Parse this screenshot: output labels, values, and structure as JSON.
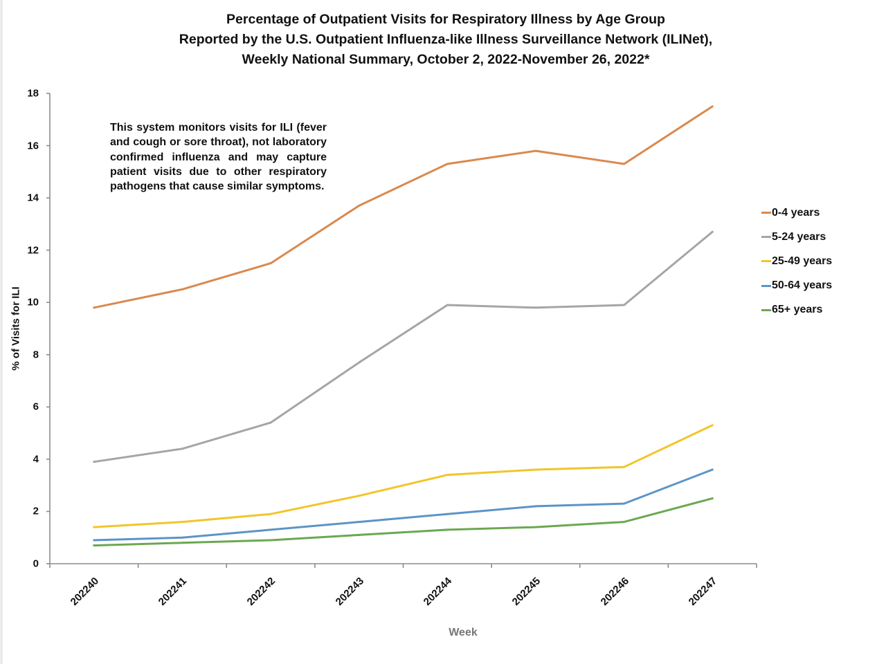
{
  "chart_data": {
    "type": "line",
    "title": [
      "Percentage of Outpatient Visits for Respiratory Illness by Age Group",
      "Reported by the U.S. Outpatient Influenza-like Illness Surveillance Network (ILINet),",
      "Weekly National Summary, October 2, 2022-November 26, 2022*"
    ],
    "xlabel": "Week",
    "ylabel": "% of Visits for ILI",
    "categories": [
      "202240",
      "202241",
      "202242",
      "202243",
      "202244",
      "202245",
      "202246",
      "202247"
    ],
    "ylim": [
      0,
      18
    ],
    "yticks": [
      "0",
      "2",
      "4",
      "6",
      "8",
      "10",
      "12",
      "14",
      "16",
      "18"
    ],
    "grid": false,
    "legend_position": "right",
    "annotation": "This system monitors visits for ILI (fever and cough or sore throat), not laboratory confirmed influenza and may capture patient visits due to other respiratory pathogens that cause similar symptoms.",
    "series": [
      {
        "name": "0-4 years",
        "color": "#d9894e",
        "values": [
          9.8,
          10.5,
          11.5,
          13.7,
          15.3,
          15.8,
          15.3,
          17.5
        ]
      },
      {
        "name": "5-24 years",
        "color": "#a5a5a5",
        "values": [
          3.9,
          4.4,
          5.4,
          7.7,
          9.9,
          9.8,
          9.9,
          12.7
        ]
      },
      {
        "name": "25-49 years",
        "color": "#f2c529",
        "values": [
          1.4,
          1.6,
          1.9,
          2.6,
          3.4,
          3.6,
          3.7,
          5.3
        ]
      },
      {
        "name": "50-64 years",
        "color": "#5b94c7",
        "values": [
          0.9,
          1.0,
          1.3,
          1.6,
          1.9,
          2.2,
          2.3,
          3.6
        ]
      },
      {
        "name": "65+ years",
        "color": "#6aa84f",
        "values": [
          0.7,
          0.8,
          0.9,
          1.1,
          1.3,
          1.4,
          1.6,
          2.5
        ]
      }
    ]
  }
}
